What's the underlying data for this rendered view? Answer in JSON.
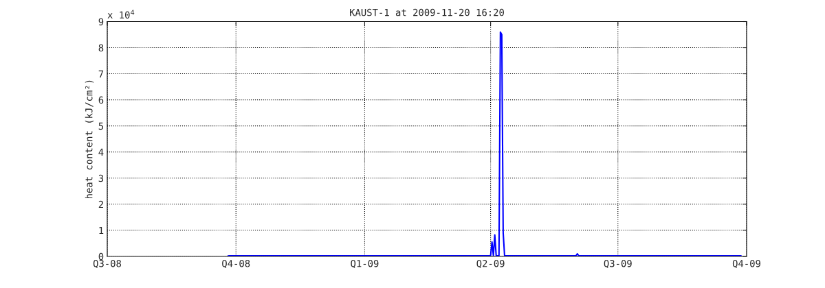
{
  "chart_data": {
    "type": "line",
    "title": "KAUST-1 at 2009-11-20 16:20",
    "ylabel": "heat content (kJ/cm²)",
    "annotations": [
      "x 10$^{4}$"
    ],
    "x": [
      "2008-09-25",
      "2008-09-26",
      "2009-04-01",
      "2009-04-02",
      "2009-04-03",
      "2009-04-04",
      "2009-04-05",
      "2009-04-07",
      "2009-04-08",
      "2009-04-09",
      "2009-04-10",
      "2009-04-11",
      "2009-06-01",
      "2009-06-02",
      "2009-06-03",
      "2009-09-27"
    ],
    "series": [
      {
        "color": "#0000ff",
        "values": [
          0,
          0.02,
          0.02,
          0.55,
          0.02,
          0.82,
          0.02,
          0.02,
          8.6,
          8.5,
          0.9,
          0.02,
          0.02,
          0.1,
          0.02,
          0.02
        ]
      }
    ],
    "xlim": [
      "2008-07-01",
      "2009-10-01"
    ],
    "xticks": [
      {
        "value": "2008-07-01",
        "label": "Q3-08"
      },
      {
        "value": "2008-10-01",
        "label": "Q4-08"
      },
      {
        "value": "2009-01-01",
        "label": "Q1-09"
      },
      {
        "value": "2009-04-01",
        "label": "Q2-09"
      },
      {
        "value": "2009-07-01",
        "label": "Q3-09"
      },
      {
        "value": "2009-10-01",
        "label": "Q4-09"
      }
    ],
    "ylim": [
      0,
      9
    ],
    "yticks": [
      0,
      1,
      2,
      3,
      4,
      5,
      6,
      7,
      8,
      9
    ],
    "grid": true,
    "line_style": "solid",
    "marker": "none"
  }
}
